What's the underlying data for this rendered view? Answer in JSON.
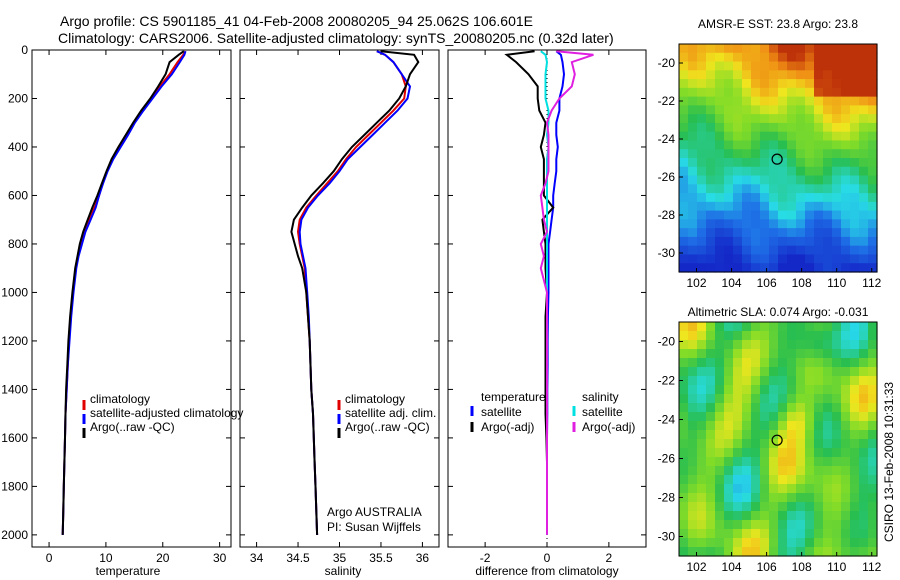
{
  "figure": {
    "title_line1": "Argo profile: CS 5901185_41 04-Feb-2008 20080205_94 25.062S 106.601E",
    "title_line2": "Climatology: CARS2006. Satellite-adjusted climatology: synTS_20080205.nc (0.32d later)",
    "credit": "CSIRO 13-Feb-2008 10:31:33"
  },
  "colors": {
    "climatology": "#e00000",
    "satellite": "#0000ff",
    "argo": "#000000",
    "sat_salinity": "#00e0e0",
    "argo_salinity_adj": "#e020e0"
  },
  "chart_data": [
    {
      "type": "line",
      "xlabel": "temperature",
      "ylabel": "",
      "xlim": [
        -3,
        32
      ],
      "ylim": [
        2050,
        0
      ],
      "x_ticks": [
        0,
        10,
        20,
        30
      ],
      "y_ticks": [
        0,
        200,
        400,
        600,
        800,
        1000,
        1200,
        1400,
        1600,
        1800,
        2000
      ],
      "legend": [
        "climatology",
        "satellite-adjusted climatology",
        "Argo(..raw -QC)"
      ],
      "depth": [
        5,
        20,
        50,
        100,
        150,
        200,
        250,
        300,
        350,
        400,
        450,
        500,
        550,
        600,
        650,
        700,
        750,
        800,
        850,
        900,
        1000,
        1100,
        1200,
        1300,
        1400,
        1500,
        1600,
        1700,
        1800,
        1900,
        2000
      ],
      "series": [
        {
          "name": "climatology",
          "values": [
            24.0,
            23.6,
            22.6,
            21.2,
            19.5,
            18.0,
            16.5,
            15.0,
            13.8,
            12.5,
            11.2,
            10.2,
            9.4,
            8.8,
            8.0,
            7.0,
            6.2,
            5.6,
            5.1,
            4.7,
            4.2,
            3.8,
            3.5,
            3.3,
            3.1,
            2.9,
            2.8,
            2.7,
            2.6,
            2.5,
            2.4
          ]
        },
        {
          "name": "satellite-adjusted climatology",
          "values": [
            24.0,
            23.8,
            23.0,
            21.6,
            19.8,
            18.2,
            16.6,
            15.1,
            13.9,
            12.6,
            11.3,
            10.3,
            9.5,
            8.8,
            8.2,
            7.3,
            6.4,
            5.8,
            5.2,
            4.8,
            4.3,
            3.9,
            3.6,
            3.3,
            3.1,
            2.9,
            2.8,
            2.7,
            2.6,
            2.5,
            2.4
          ]
        },
        {
          "name": "Argo(..raw -QC)",
          "values": [
            23.7,
            22.8,
            21.2,
            20.5,
            19.2,
            17.8,
            16.2,
            14.8,
            13.5,
            12.2,
            11.0,
            10.1,
            9.3,
            8.5,
            7.6,
            6.8,
            6.0,
            5.4,
            5.0,
            4.6,
            4.1,
            3.7,
            3.4,
            3.2,
            3.0,
            2.9,
            2.8,
            2.7,
            2.6,
            2.5,
            2.4
          ]
        }
      ]
    },
    {
      "type": "line",
      "xlabel": "salinity",
      "xlim": [
        33.8,
        36.2
      ],
      "ylim": [
        2050,
        0
      ],
      "x_ticks": [
        34,
        34.5,
        35,
        35.5,
        36
      ],
      "legend": [
        "climatology",
        "satellite adj. clim.",
        "Argo(..raw -QC)"
      ],
      "annotation_line1": "Argo AUSTRALIA",
      "annotation_line2": "PI: Susan Wijffels",
      "depth": [
        5,
        20,
        50,
        100,
        150,
        200,
        250,
        300,
        350,
        400,
        450,
        500,
        550,
        600,
        650,
        700,
        750,
        800,
        850,
        900,
        1000,
        1100,
        1200,
        1300,
        1400,
        1500,
        1600,
        1700,
        1800,
        1900,
        2000
      ],
      "series": [
        {
          "name": "climatology",
          "values": [
            35.45,
            35.55,
            35.65,
            35.75,
            35.8,
            35.78,
            35.65,
            35.5,
            35.35,
            35.2,
            35.08,
            34.98,
            34.85,
            34.72,
            34.6,
            34.52,
            34.5,
            34.52,
            34.55,
            34.58,
            34.6,
            34.62,
            34.64,
            34.65,
            34.66,
            34.68,
            34.69,
            34.7,
            34.71,
            34.72,
            34.73
          ]
        },
        {
          "name": "satellite adj. clim.",
          "values": [
            35.45,
            35.55,
            35.65,
            35.75,
            35.85,
            35.82,
            35.7,
            35.55,
            35.4,
            35.25,
            35.1,
            35.0,
            34.88,
            34.74,
            34.62,
            34.54,
            34.52,
            34.53,
            34.56,
            34.59,
            34.61,
            34.63,
            34.64,
            34.65,
            34.66,
            34.68,
            34.69,
            34.7,
            34.71,
            34.72,
            34.73
          ]
        },
        {
          "name": "Argo(..raw -QC)",
          "values": [
            35.5,
            35.9,
            35.95,
            35.85,
            35.8,
            35.72,
            35.6,
            35.45,
            35.3,
            35.15,
            35.03,
            34.93,
            34.8,
            34.66,
            34.55,
            34.45,
            34.42,
            34.46,
            34.5,
            34.55,
            34.6,
            34.62,
            34.64,
            34.65,
            34.66,
            34.68,
            34.69,
            34.7,
            34.71,
            34.72,
            34.73
          ]
        }
      ]
    },
    {
      "type": "line",
      "xlabel": "difference from climatology",
      "xlim": [
        -3.2,
        3.2
      ],
      "ylim": [
        2050,
        0
      ],
      "x_ticks": [
        -2,
        0,
        2
      ],
      "legend_temperature_header": "temperature",
      "legend_salinity_header": "salinity",
      "legend": [
        "satellite",
        "Argo(-adj)",
        "satellite",
        "Argo(-adj)"
      ],
      "depth": [
        5,
        20,
        50,
        100,
        150,
        200,
        250,
        300,
        350,
        400,
        450,
        500,
        550,
        600,
        650,
        700,
        750,
        800,
        850,
        900,
        1000,
        1100,
        1200,
        1300,
        1400,
        1500,
        1600,
        1700,
        1800,
        1900,
        2000
      ],
      "series": [
        {
          "name": "temperature satellite",
          "values": [
            0.3,
            0.45,
            0.5,
            0.55,
            0.5,
            0.4,
            0.4,
            0.3,
            0.3,
            0.35,
            0.3,
            0.3,
            0.25,
            0.2,
            0.2,
            0.15,
            0.1,
            0.05,
            0.05,
            0.05,
            0.05,
            0.03,
            0.02,
            0.02,
            0.01,
            0.01,
            0.0,
            0.0,
            0.0,
            0.0,
            0.0
          ]
        },
        {
          "name": "temperature Argo(-adj)",
          "values": [
            -0.4,
            -1.3,
            -1.0,
            -0.6,
            -0.3,
            -0.3,
            -0.25,
            -0.05,
            -0.1,
            -0.2,
            -0.1,
            -0.1,
            -0.1,
            -0.1,
            0.2,
            -0.15,
            -0.1,
            -0.05,
            -0.05,
            -0.05,
            0.0,
            -0.05,
            -0.05,
            -0.05,
            -0.05,
            -0.05,
            -0.02,
            0.0,
            0.0,
            0.0,
            0.0
          ]
        },
        {
          "name": "salinity satellite",
          "values": [
            -0.2,
            -0.05,
            0.0,
            -0.05,
            -0.05,
            -0.05,
            0.05,
            0.05,
            0.0,
            0.05,
            0.0,
            0.0,
            0.0,
            0.0,
            0.0,
            0.0,
            0.0,
            0.0,
            0.0,
            0.0,
            0.0,
            0.0,
            0.0,
            0.0,
            0.0,
            0.0,
            0.0,
            0.0,
            0.0,
            0.0,
            0.0
          ]
        },
        {
          "name": "salinity Argo(-adj)",
          "values": [
            0.3,
            1.5,
            0.8,
            0.9,
            0.8,
            0.4,
            0.15,
            0.0,
            0.05,
            0.05,
            0.05,
            0.05,
            -0.05,
            -0.2,
            -0.15,
            -0.1,
            0.0,
            -0.2,
            -0.1,
            -0.2,
            0.0,
            0.0,
            0.0,
            0.0,
            0.0,
            0.0,
            0.0,
            0.0,
            0.0,
            0.0,
            0.0
          ]
        }
      ]
    },
    {
      "type": "heatmap",
      "title": "AMSR-E SST: 23.8 Argo: 23.8",
      "xlim": [
        101,
        112.3
      ],
      "ylim": [
        -31,
        -19
      ],
      "x_ticks": [
        102,
        104,
        106,
        108,
        110,
        112
      ],
      "y_ticks": [
        -20,
        -22,
        -24,
        -26,
        -28,
        -30
      ],
      "marker": {
        "lon": 106.6,
        "lat": -25.06
      }
    },
    {
      "type": "heatmap",
      "title": "Altimetric SLA: 0.074 Argo: -0.031",
      "xlim": [
        101,
        112.3
      ],
      "ylim": [
        -31,
        -19
      ],
      "x_ticks": [
        102,
        104,
        106,
        108,
        110,
        112
      ],
      "y_ticks": [
        -20,
        -22,
        -24,
        -26,
        -28,
        -30
      ],
      "marker": {
        "lon": 106.6,
        "lat": -25.06
      }
    }
  ]
}
